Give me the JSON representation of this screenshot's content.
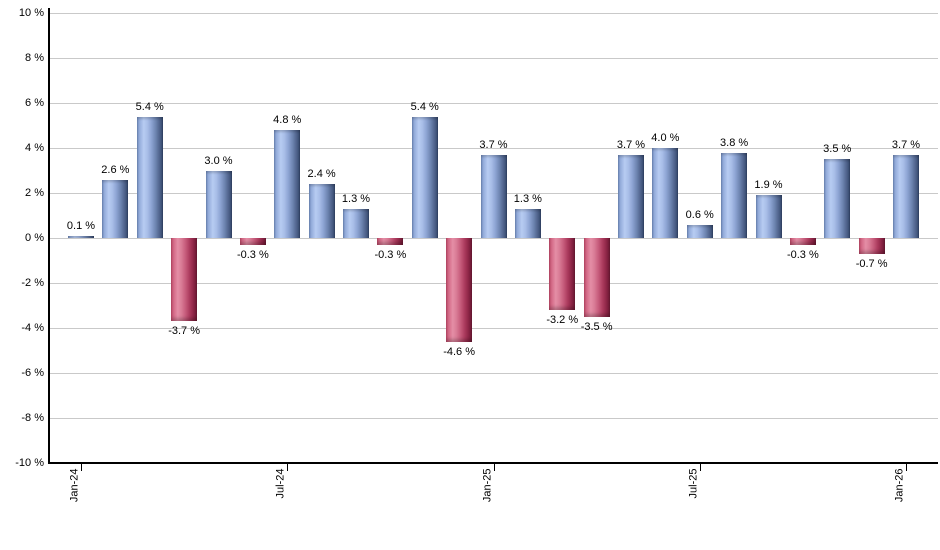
{
  "chart_data": {
    "type": "bar",
    "title": "",
    "xlabel": "",
    "ylabel": "",
    "ylim": [
      -10,
      10
    ],
    "ytick_step": 2,
    "grid": true,
    "legend": "none",
    "yticks": [
      {
        "value": 10,
        "label": "10 %"
      },
      {
        "value": 8,
        "label": "8 %"
      },
      {
        "value": 6,
        "label": "6 %"
      },
      {
        "value": 4,
        "label": "4 %"
      },
      {
        "value": 2,
        "label": "2 %"
      },
      {
        "value": 0,
        "label": "0 %"
      },
      {
        "value": -2,
        "label": "-2 %"
      },
      {
        "value": -4,
        "label": "-4 %"
      },
      {
        "value": -6,
        "label": "-6 %"
      },
      {
        "value": -8,
        "label": "-8 %"
      },
      {
        "value": -10,
        "label": "-10 %"
      }
    ],
    "xticks": [
      {
        "label": "Jan-24",
        "month_index": 0
      },
      {
        "label": "Jul-24",
        "month_index": 6
      },
      {
        "label": "Jan-25",
        "month_index": 12
      },
      {
        "label": "Jul-25",
        "month_index": 18
      },
      {
        "label": "Jan-26",
        "month_index": 24
      }
    ],
    "values": [
      0.1,
      2.6,
      5.4,
      -3.7,
      3.0,
      -0.3,
      4.8,
      2.4,
      1.3,
      -0.3,
      5.4,
      -4.6,
      3.7,
      1.3,
      -3.2,
      -3.5,
      3.7,
      4.0,
      0.6,
      3.8,
      1.9,
      -0.3,
      3.5,
      -0.7,
      3.7
    ],
    "value_labels": [
      "0.1 %",
      "2.6 %",
      "5.4 %",
      "-3.7 %",
      "3.0 %",
      "-0.3 %",
      "4.8 %",
      "2.4 %",
      "1.3 %",
      "-0.3 %",
      "5.4 %",
      "-4.6 %",
      "3.7 %",
      "1.3 %",
      "-3.2 %",
      "-3.5 %",
      "3.7 %",
      "4.0 %",
      "0.6 %",
      "3.8 %",
      "1.9 %",
      "-0.3 %",
      "3.5 %",
      "-0.7 %",
      "3.7 %"
    ],
    "colors": {
      "positive_bar_light": "#b7ccf2",
      "positive_bar_dark": "#2e3f60",
      "negative_bar_light": "#e48ea6",
      "negative_bar_dark": "#6a1832",
      "gridline": "#c9c9c9",
      "axis": "#000000",
      "text": "#000000",
      "background": "#ffffff"
    }
  }
}
